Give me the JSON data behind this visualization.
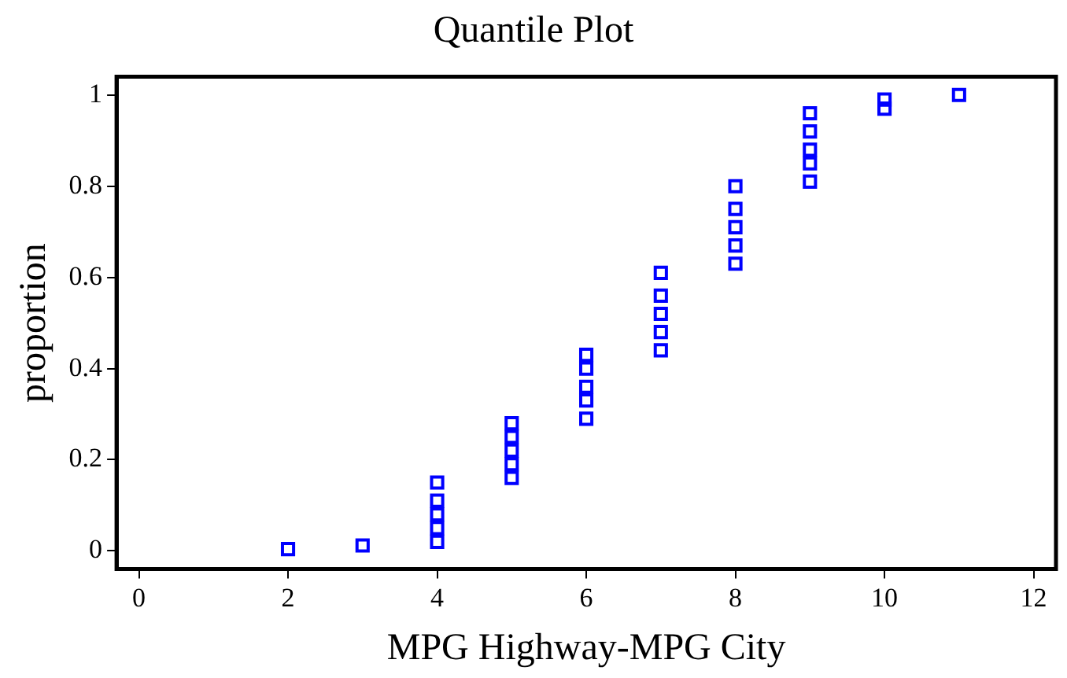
{
  "chart_data": {
    "type": "scatter",
    "title": "Quantile Plot",
    "xlabel": "MPG Highway-MPG City",
    "ylabel": "proportion",
    "x": [
      2,
      3,
      4,
      4,
      4,
      4,
      4,
      5,
      5,
      5,
      5,
      5,
      6,
      6,
      6,
      6,
      6,
      7,
      7,
      7,
      7,
      7,
      8,
      8,
      8,
      8,
      8,
      9,
      9,
      9,
      9,
      9,
      10,
      10,
      11
    ],
    "series": [
      {
        "color": "#0000ff",
        "values": [
          0.004,
          0.012,
          0.02,
          0.05,
          0.08,
          0.11,
          0.15,
          0.16,
          0.19,
          0.22,
          0.25,
          0.28,
          0.29,
          0.33,
          0.36,
          0.4,
          0.43,
          0.44,
          0.48,
          0.52,
          0.56,
          0.61,
          0.63,
          0.67,
          0.71,
          0.75,
          0.8,
          0.81,
          0.85,
          0.88,
          0.92,
          0.96,
          0.97,
          0.99,
          1.0
        ]
      }
    ],
    "marker": "square",
    "xlim": [
      -0.3,
      12.3
    ],
    "ylim": [
      -0.04,
      1.04
    ],
    "xticks": [
      0,
      2,
      4,
      6,
      8,
      10,
      12
    ],
    "yticks": [
      0,
      0.2,
      0.4,
      0.6,
      0.8,
      1
    ],
    "grid": false,
    "legend": false
  }
}
